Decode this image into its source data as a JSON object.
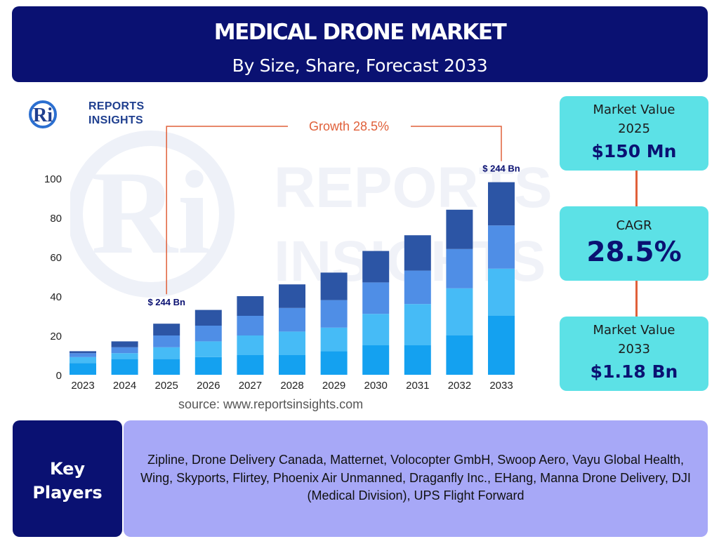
{
  "header": {
    "title": "MEDICAL DRONE MARKET",
    "subtitle": "By Size, Share, Forecast 2033"
  },
  "logo": {
    "line1": "REPORTS",
    "line2": "INSIGHTS",
    "mark": "Ri"
  },
  "watermark": {
    "mark": "Ri",
    "line1": "REPORTS",
    "line2": "INSIGHTS"
  },
  "chart_data": {
    "type": "bar",
    "stacked": true,
    "categories": [
      "2023",
      "2024",
      "2025",
      "2026",
      "2027",
      "2028",
      "2029",
      "2030",
      "2031",
      "2032",
      "2033"
    ],
    "series": [
      {
        "values": [
          6,
          8,
          8,
          9,
          10,
          10,
          12,
          15,
          15,
          20,
          30
        ],
        "color": "#14a1f0"
      },
      {
        "values": [
          3,
          3,
          6,
          8,
          10,
          12,
          12,
          16,
          21,
          24,
          24
        ],
        "color": "#46bbf6"
      },
      {
        "values": [
          2,
          3,
          6,
          8,
          10,
          12,
          14,
          16,
          17,
          20,
          22
        ],
        "color": "#4f8ee6"
      },
      {
        "values": [
          1,
          3,
          6,
          8,
          10,
          12,
          14,
          16,
          18,
          20,
          22
        ],
        "color": "#2c55a5"
      }
    ],
    "yticks": [
      0,
      20,
      40,
      60,
      80,
      100
    ],
    "ylim": [
      0,
      100
    ],
    "annotations": {
      "growth": "Growth  28.5%",
      "start_label": "$ 244 Bn",
      "end_label": "$ 244 Bn"
    },
    "accent_color": "#e0603a"
  },
  "source": "source: www.reportsinsights.com",
  "stats": {
    "value_2025": {
      "label": "Market Value\n2025",
      "value": "$150 Mn"
    },
    "cagr": {
      "label": "CAGR",
      "value": "28.5%"
    },
    "value_2033": {
      "label": "Market Value\n2033",
      "value": "$1.18 Bn"
    }
  },
  "key_players": {
    "title": "Key\nPlayers",
    "text": "Zipline, Drone Delivery Canada, Matternet, Volocopter GmbH, Swoop Aero, Vayu Global Health, Wing, Skyports, Flirtey, Phoenix Air Unmanned, Draganfly Inc., EHang, Manna Drone Delivery, DJI (Medical Division), UPS Flight Forward"
  },
  "colors": {
    "navy": "#0a1172",
    "cyan": "#5ce1e6",
    "lavender": "#a7a8f7",
    "accent": "#e0603a"
  }
}
